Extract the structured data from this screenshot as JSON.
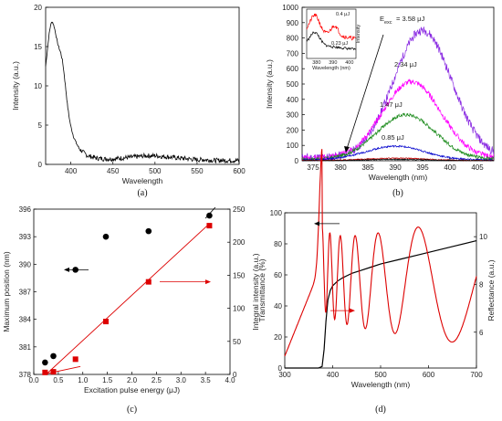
{
  "chart_data": [
    {
      "panel": "(a)",
      "type": "line",
      "xlabel": "Wavelength",
      "ylabel": "Intensity (a.u.)",
      "xlim": [
        370,
        600
      ],
      "ylim": [
        0,
        20
      ],
      "xticks": [
        "400",
        "450",
        "500",
        "550",
        "600"
      ],
      "yticks": [
        "0",
        "5",
        "10",
        "15",
        "20"
      ],
      "series": [
        {
          "color": "#000000",
          "x": [
            370,
            372,
            374,
            376,
            378,
            380,
            382,
            384,
            386,
            388,
            390,
            392,
            394,
            396,
            398,
            400,
            403,
            406,
            410,
            415,
            420,
            430,
            440,
            450,
            460,
            470,
            480,
            490,
            500,
            510,
            520,
            530,
            540,
            550,
            560,
            570,
            580,
            590,
            600
          ],
          "y": [
            12.5,
            14.5,
            16.5,
            17.8,
            18.2,
            17.6,
            16.6,
            15.5,
            14.8,
            14.2,
            13.2,
            11.5,
            9.5,
            7.5,
            6.0,
            4.8,
            3.6,
            2.8,
            2.0,
            1.5,
            1.1,
            0.8,
            0.7,
            0.7,
            0.8,
            0.9,
            1.0,
            1.1,
            1.1,
            1.0,
            0.9,
            0.8,
            0.7,
            0.6,
            0.6,
            0.5,
            0.5,
            0.5,
            0.5
          ]
        }
      ]
    },
    {
      "panel": "(b)",
      "type": "line",
      "xlabel": "Wavelength (nm)",
      "ylabel": "Intensity (a.u.)",
      "xlim": [
        373,
        408
      ],
      "ylim": [
        0,
        1000
      ],
      "xticks": [
        "375",
        "380",
        "385",
        "390",
        "395",
        "400",
        "405"
      ],
      "yticks": [
        "0",
        "100",
        "200",
        "300",
        "400",
        "500",
        "600",
        "700",
        "800",
        "900",
        "1000"
      ],
      "annotations": [
        "3.58 μJ",
        "2.34 μJ",
        "1.47 μJ",
        "0.85 μJ"
      ],
      "annotation_prefix": "E",
      "annotation_subscript": "exc",
      "series": [
        {
          "color": "#8a2be2",
          "peak": 395,
          "height": 830,
          "base": 20
        },
        {
          "color": "#ff00ff",
          "peak": 393,
          "height": 500,
          "base": 15
        },
        {
          "color": "#1a8a1a",
          "peak": 392,
          "height": 290,
          "base": 10
        },
        {
          "color": "#0000cc",
          "peak": 390,
          "height": 90,
          "base": 5
        },
        {
          "color": "#cc0000",
          "peak": 390,
          "height": 15,
          "base": 2
        },
        {
          "color": "#000000",
          "peak": 390,
          "height": 8,
          "base": 1
        }
      ],
      "inset": {
        "xlabel": "Wavelength (nm)",
        "ylabel": "Intensity",
        "xticks": [
          "380",
          "390",
          "400"
        ],
        "labels": [
          "0.4 μJ",
          "0.23 μJ"
        ]
      }
    },
    {
      "panel": "(c)",
      "type": "scatter",
      "xlabel": "Excitation pulse energy (μJ)",
      "ylabel": "Maximum position (nm)",
      "y2label": "Integral intensity (a.u.)",
      "xlim": [
        0.0,
        4.0
      ],
      "ylim": [
        378,
        396
      ],
      "y2lim": [
        0,
        250
      ],
      "xticks": [
        "0.0",
        "0.5",
        "1.0",
        "1.5",
        "2.0",
        "2.5",
        "3.0",
        "3.5",
        "4.0"
      ],
      "yticks": [
        "378",
        "381",
        "384",
        "387",
        "390",
        "393",
        "396"
      ],
      "y2ticks": [
        "0",
        "50",
        "100",
        "150",
        "200",
        "250"
      ],
      "series": [
        {
          "axis": "left",
          "color": "#000000",
          "marker": "circle",
          "x": [
            0.23,
            0.4,
            0.85,
            1.47,
            2.34,
            3.58
          ],
          "y": [
            379.3,
            380.0,
            389.4,
            393.0,
            393.6,
            395.3
          ]
        },
        {
          "axis": "right",
          "color": "#dd0000",
          "marker": "square",
          "x": [
            0.23,
            0.4,
            0.85,
            1.47,
            2.34,
            3.58
          ],
          "y": [
            3,
            4,
            23,
            80,
            140,
            225
          ]
        }
      ]
    },
    {
      "panel": "(d)",
      "type": "line",
      "xlabel": "Wavelength (nm)",
      "ylabel": "Transmittance (%)",
      "y2label": "Reflectance (a.u.)",
      "xlim": [
        300,
        700
      ],
      "ylim": [
        0,
        100
      ],
      "y2lim": [
        4.5,
        11
      ],
      "xticks": [
        "300",
        "400",
        "500",
        "600",
        "700"
      ],
      "yticks": [
        "0",
        "20",
        "40",
        "60",
        "80",
        "100"
      ],
      "y2ticks": [
        "6",
        "8",
        "10"
      ],
      "series": [
        {
          "axis": "left",
          "color": "#000000",
          "x": [
            300,
            370,
            378,
            382,
            386,
            390,
            395,
            400,
            410,
            420,
            440,
            460,
            480,
            500,
            540,
            580,
            620,
            660,
            700
          ],
          "y": [
            0,
            0,
            1,
            12,
            30,
            44,
            50,
            53,
            56,
            58,
            61,
            63,
            65,
            67,
            70,
            73,
            76,
            79,
            82
          ]
        },
        {
          "axis": "right",
          "color": "#dd0000",
          "note": "interference fringes"
        }
      ]
    }
  ],
  "captions": [
    "(a)",
    "(b)",
    "(c)",
    "(d)"
  ]
}
